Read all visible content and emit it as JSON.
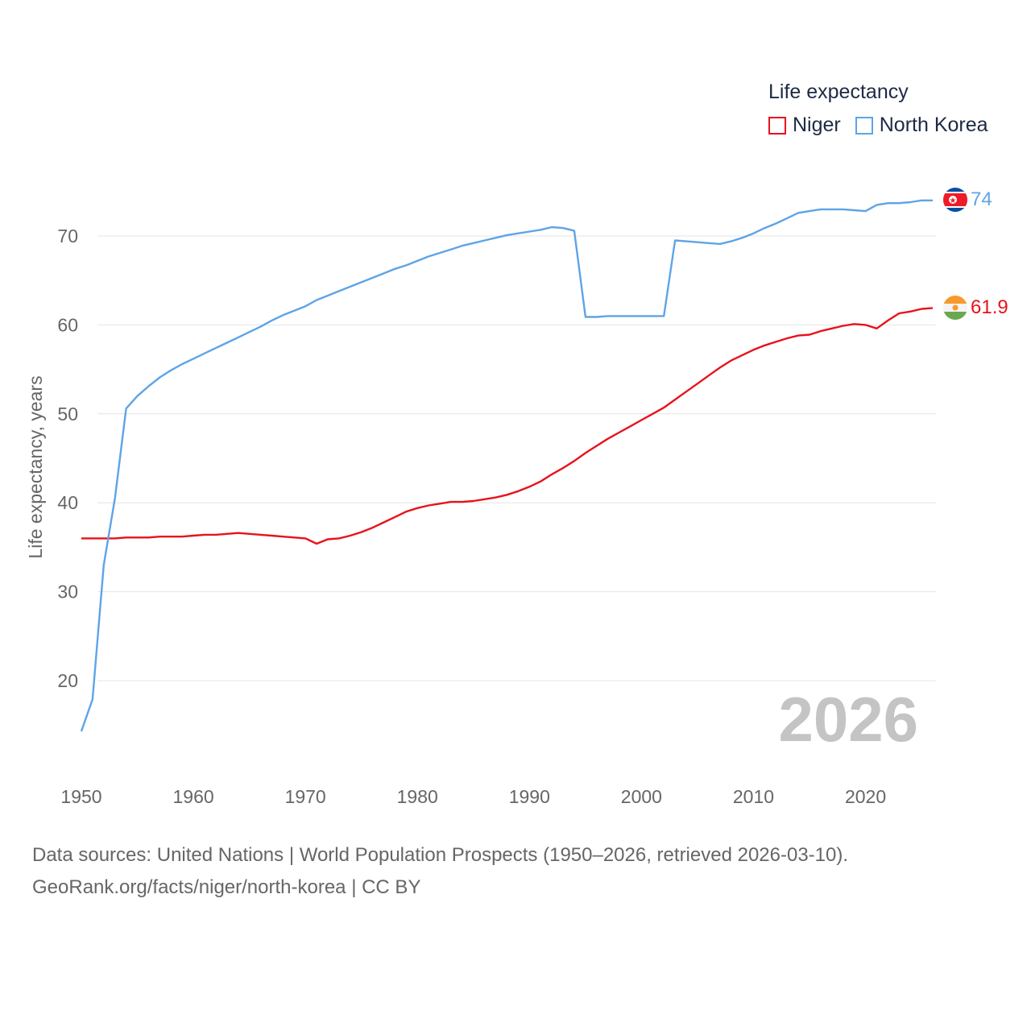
{
  "legend": {
    "title": "Life expectancy",
    "items": [
      {
        "label": "Niger",
        "color": "#e8121b"
      },
      {
        "label": "North Korea",
        "color": "#5ea4e6"
      }
    ]
  },
  "chart_data": {
    "type": "line",
    "title": "Life expectancy",
    "xlabel": "",
    "ylabel": "Life expectancy, years",
    "xlim": [
      1950,
      2026
    ],
    "ylim": [
      13,
      80
    ],
    "x_ticks": [
      1950,
      1960,
      1970,
      1980,
      1990,
      2000,
      2010,
      2020
    ],
    "y_ticks": [
      20,
      30,
      40,
      50,
      60,
      70
    ],
    "watermark_year": "2026",
    "series": [
      {
        "name": "Niger",
        "color": "#e8121b",
        "end_label": "61.9",
        "x": [
          1950,
          1951,
          1952,
          1953,
          1954,
          1955,
          1956,
          1957,
          1958,
          1959,
          1960,
          1961,
          1962,
          1963,
          1964,
          1965,
          1966,
          1967,
          1968,
          1969,
          1970,
          1971,
          1972,
          1973,
          1974,
          1975,
          1976,
          1977,
          1978,
          1979,
          1980,
          1981,
          1982,
          1983,
          1984,
          1985,
          1986,
          1987,
          1988,
          1989,
          1990,
          1991,
          1992,
          1993,
          1994,
          1995,
          1996,
          1997,
          1998,
          1999,
          2000,
          2001,
          2002,
          2003,
          2004,
          2005,
          2006,
          2007,
          2008,
          2009,
          2010,
          2011,
          2012,
          2013,
          2014,
          2015,
          2016,
          2017,
          2018,
          2019,
          2020,
          2021,
          2022,
          2023,
          2024,
          2025,
          2026
        ],
        "values": [
          36.0,
          36.0,
          36.0,
          36.0,
          36.1,
          36.1,
          36.1,
          36.2,
          36.2,
          36.2,
          36.3,
          36.4,
          36.4,
          36.5,
          36.6,
          36.5,
          36.4,
          36.3,
          36.2,
          36.1,
          36.0,
          35.4,
          35.9,
          36.0,
          36.3,
          36.7,
          37.2,
          37.8,
          38.4,
          39.0,
          39.4,
          39.7,
          39.9,
          40.1,
          40.1,
          40.2,
          40.4,
          40.6,
          40.9,
          41.3,
          41.8,
          42.4,
          43.2,
          43.9,
          44.7,
          45.6,
          46.4,
          47.2,
          47.9,
          48.6,
          49.3,
          50.0,
          50.7,
          51.6,
          52.5,
          53.4,
          54.3,
          55.2,
          56.0,
          56.6,
          57.2,
          57.7,
          58.1,
          58.5,
          58.8,
          58.9,
          59.3,
          59.6,
          59.9,
          60.1,
          60.0,
          59.6,
          60.5,
          61.3,
          61.5,
          61.8,
          61.9
        ]
      },
      {
        "name": "North Korea",
        "color": "#5ea4e6",
        "end_label": "74",
        "x": [
          1950,
          1951,
          1952,
          1953,
          1954,
          1955,
          1956,
          1957,
          1958,
          1959,
          1960,
          1961,
          1962,
          1963,
          1964,
          1965,
          1966,
          1967,
          1968,
          1969,
          1970,
          1971,
          1972,
          1973,
          1974,
          1975,
          1976,
          1977,
          1978,
          1979,
          1980,
          1981,
          1982,
          1983,
          1984,
          1985,
          1986,
          1987,
          1988,
          1989,
          1990,
          1991,
          1992,
          1993,
          1994,
          1995,
          1996,
          1997,
          1998,
          1999,
          2000,
          2001,
          2002,
          2003,
          2004,
          2005,
          2006,
          2007,
          2008,
          2009,
          2010,
          2011,
          2012,
          2013,
          2014,
          2015,
          2016,
          2017,
          2018,
          2019,
          2020,
          2021,
          2022,
          2023,
          2024,
          2025,
          2026
        ],
        "values": [
          14.3,
          17.9,
          33.0,
          40.5,
          50.6,
          52.0,
          53.1,
          54.1,
          54.9,
          55.6,
          56.2,
          56.8,
          57.4,
          58.0,
          58.6,
          59.2,
          59.8,
          60.5,
          61.1,
          61.6,
          62.1,
          62.8,
          63.3,
          63.8,
          64.3,
          64.8,
          65.3,
          65.8,
          66.3,
          66.7,
          67.2,
          67.7,
          68.1,
          68.5,
          68.9,
          69.2,
          69.5,
          69.8,
          70.1,
          70.3,
          70.5,
          70.7,
          71.0,
          70.9,
          70.6,
          60.9,
          60.9,
          61.0,
          61.0,
          61.0,
          61.0,
          61.0,
          61.0,
          69.5,
          69.4,
          69.3,
          69.2,
          69.1,
          69.4,
          69.8,
          70.3,
          70.9,
          71.4,
          72.0,
          72.6,
          72.8,
          73.0,
          73.0,
          73.0,
          72.9,
          72.8,
          73.5,
          73.7,
          73.7,
          73.8,
          74.0,
          74.0
        ]
      }
    ]
  },
  "footer": {
    "line1": "Data sources: United Nations | World Population Prospects (1950–2026, retrieved 2026-03-10).",
    "line2": "GeoRank.org/facts/niger/north-korea | CC BY"
  }
}
